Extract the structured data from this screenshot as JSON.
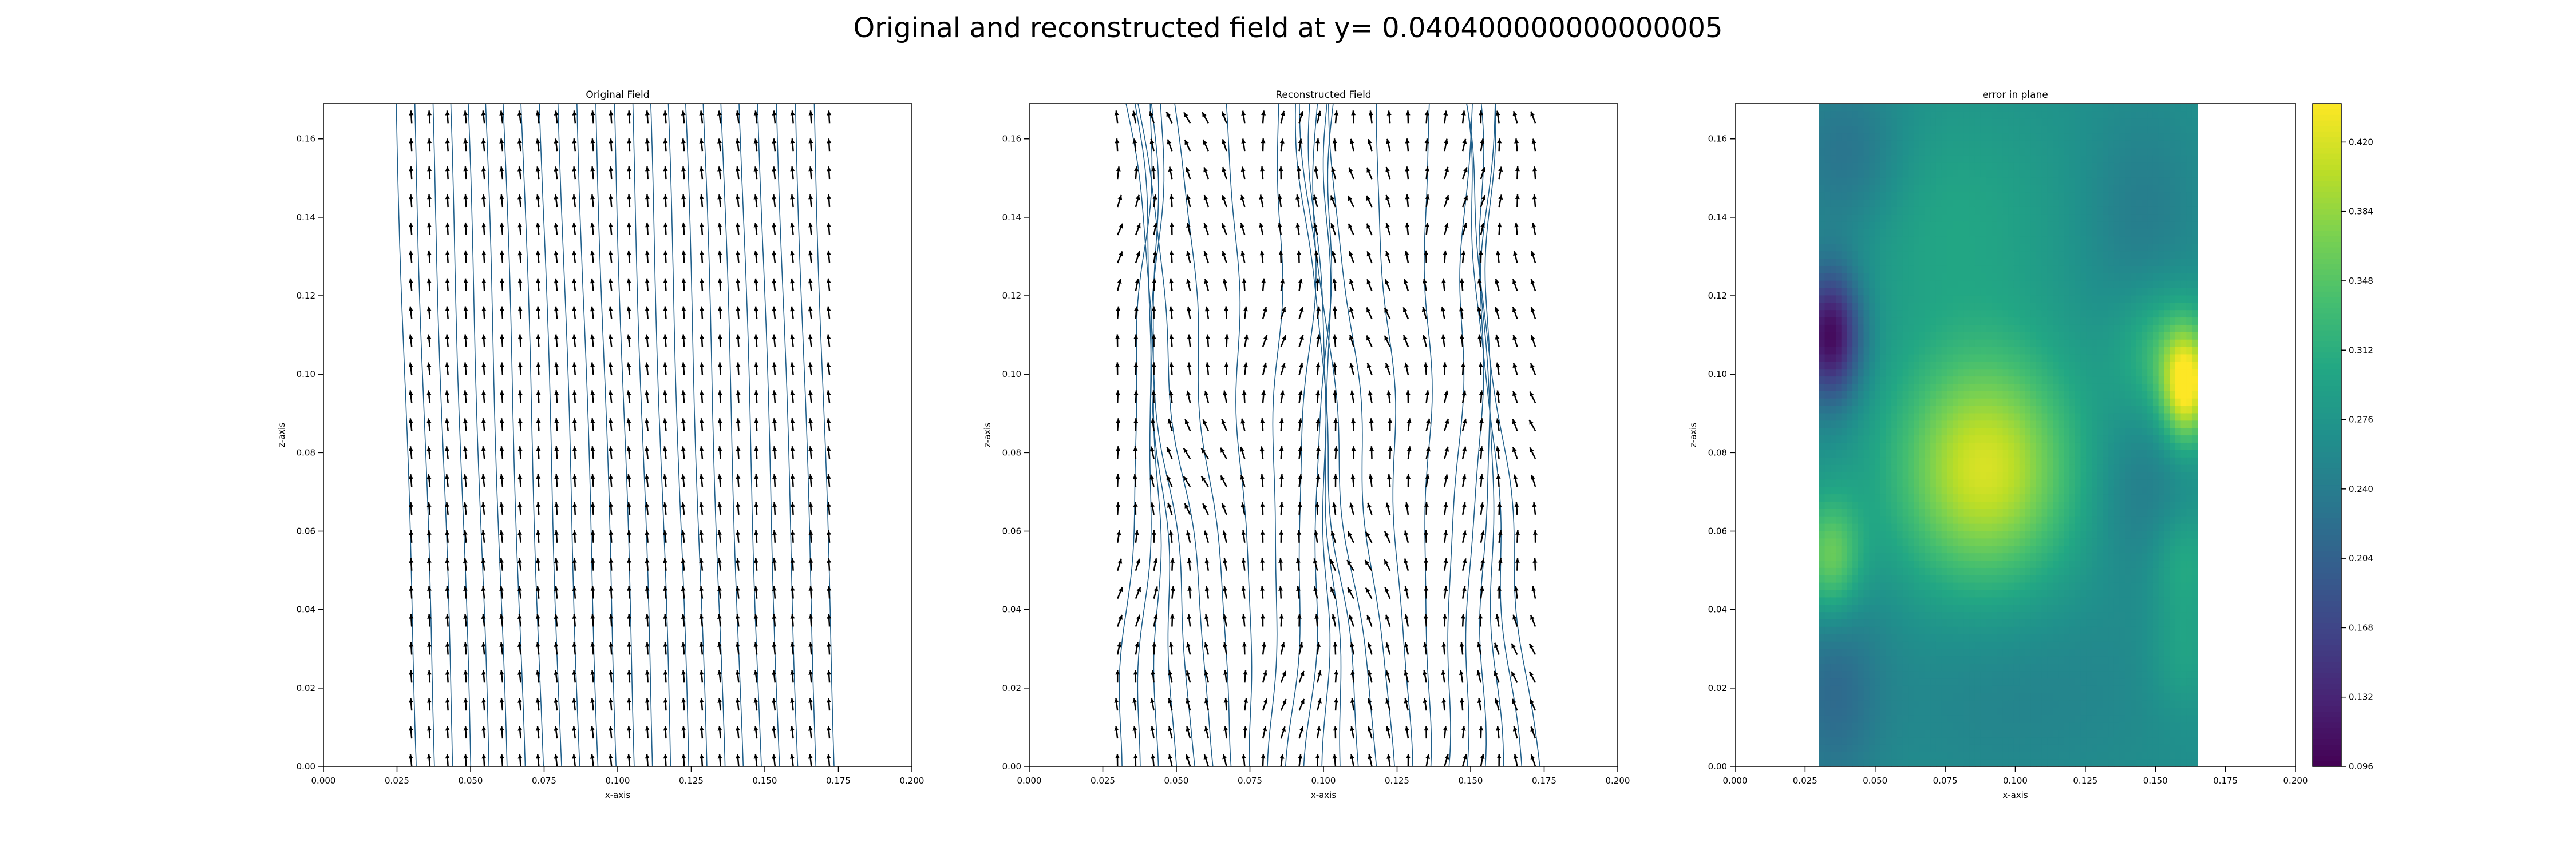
{
  "suptitle": "Original and reconstructed field at y= 0.040400000000000005",
  "chart_data": [
    {
      "type": "quiver",
      "title": "Original Field",
      "xlabel": "x-axis",
      "ylabel": "z-axis",
      "xlim": [
        0.0,
        0.2
      ],
      "ylim": [
        0.0,
        0.169
      ],
      "x_ticks": [
        "0.000",
        "0.025",
        "0.050",
        "0.075",
        "0.100",
        "0.125",
        "0.150",
        "0.175",
        "0.200"
      ],
      "y_ticks": [
        "0.00",
        "0.02",
        "0.04",
        "0.06",
        "0.08",
        "0.10",
        "0.12",
        "0.14",
        "0.16"
      ],
      "grid": {
        "x_range": [
          0.03,
          0.172
        ],
        "z_range": [
          0.0,
          0.164
        ],
        "nx": 24,
        "nz": 24
      },
      "field": "nearly uniform, pointing up (+z) with slight leftward tilt",
      "streamlines": true,
      "arrow_color": "#000000",
      "streamline_color": "#1f5f8b"
    },
    {
      "type": "quiver",
      "title": "Reconstructed Field",
      "xlabel": "x-axis",
      "ylabel": "z-axis",
      "xlim": [
        0.0,
        0.2
      ],
      "ylim": [
        0.0,
        0.169
      ],
      "x_ticks": [
        "0.000",
        "0.025",
        "0.050",
        "0.075",
        "0.100",
        "0.125",
        "0.150",
        "0.175",
        "0.200"
      ],
      "y_ticks": [
        "0.00",
        "0.02",
        "0.04",
        "0.06",
        "0.08",
        "0.10",
        "0.12",
        "0.14",
        "0.16"
      ],
      "grid": {
        "x_range": [
          0.03,
          0.172
        ],
        "z_range": [
          0.0,
          0.164
        ],
        "nx": 24,
        "nz": 24
      },
      "field": "mostly upward with stronger local deflections",
      "streamlines": true,
      "arrow_color": "#000000",
      "streamline_color": "#1f5f8b"
    },
    {
      "type": "heatmap",
      "title": "error in plane",
      "xlabel": "x-axis",
      "ylabel": "z-axis",
      "xlim": [
        0.0,
        0.2
      ],
      "ylim": [
        0.0,
        0.169
      ],
      "extent_x": [
        0.03,
        0.165
      ],
      "x_ticks": [
        "0.000",
        "0.025",
        "0.050",
        "0.075",
        "0.100",
        "0.125",
        "0.150",
        "0.175",
        "0.200"
      ],
      "y_ticks": [
        "0.00",
        "0.02",
        "0.04",
        "0.06",
        "0.08",
        "0.10",
        "0.12",
        "0.14",
        "0.16"
      ],
      "colormap": "viridis",
      "colorbar_range": [
        0.096,
        0.44
      ],
      "colorbar_ticks": [
        "0.096",
        "0.132",
        "0.168",
        "0.204",
        "0.240",
        "0.276",
        "0.312",
        "0.348",
        "0.384",
        "0.420"
      ],
      "base_error": 0.27,
      "features": [
        {
          "x": 0.089,
          "z": 0.076,
          "value": 0.42,
          "sx": 0.022,
          "sz": 0.021
        },
        {
          "x": 0.161,
          "z": 0.097,
          "value": 0.43,
          "sx": 0.006,
          "sz": 0.01
        },
        {
          "x": 0.153,
          "z": 0.106,
          "value": 0.33,
          "sx": 0.012,
          "sz": 0.012
        },
        {
          "x": 0.034,
          "z": 0.053,
          "value": 0.37,
          "sx": 0.008,
          "sz": 0.011
        },
        {
          "x": 0.034,
          "z": 0.11,
          "value": 0.1,
          "sx": 0.008,
          "sz": 0.012
        },
        {
          "x": 0.16,
          "z": 0.052,
          "value": 0.31,
          "sx": 0.008,
          "sz": 0.01
        },
        {
          "x": 0.04,
          "z": 0.155,
          "value": 0.22,
          "sx": 0.015,
          "sz": 0.015
        },
        {
          "x": 0.035,
          "z": 0.02,
          "value": 0.22,
          "sx": 0.012,
          "sz": 0.02
        },
        {
          "x": 0.075,
          "z": 0.14,
          "value": 0.3,
          "sx": 0.03,
          "sz": 0.02
        },
        {
          "x": 0.1,
          "z": 0.02,
          "value": 0.25,
          "sx": 0.04,
          "sz": 0.02
        },
        {
          "x": 0.145,
          "z": 0.14,
          "value": 0.24,
          "sx": 0.015,
          "sz": 0.02
        },
        {
          "x": 0.145,
          "z": 0.07,
          "value": 0.24,
          "sx": 0.012,
          "sz": 0.015
        },
        {
          "x": 0.16,
          "z": 0.028,
          "value": 0.3,
          "sx": 0.008,
          "sz": 0.01
        }
      ]
    }
  ]
}
